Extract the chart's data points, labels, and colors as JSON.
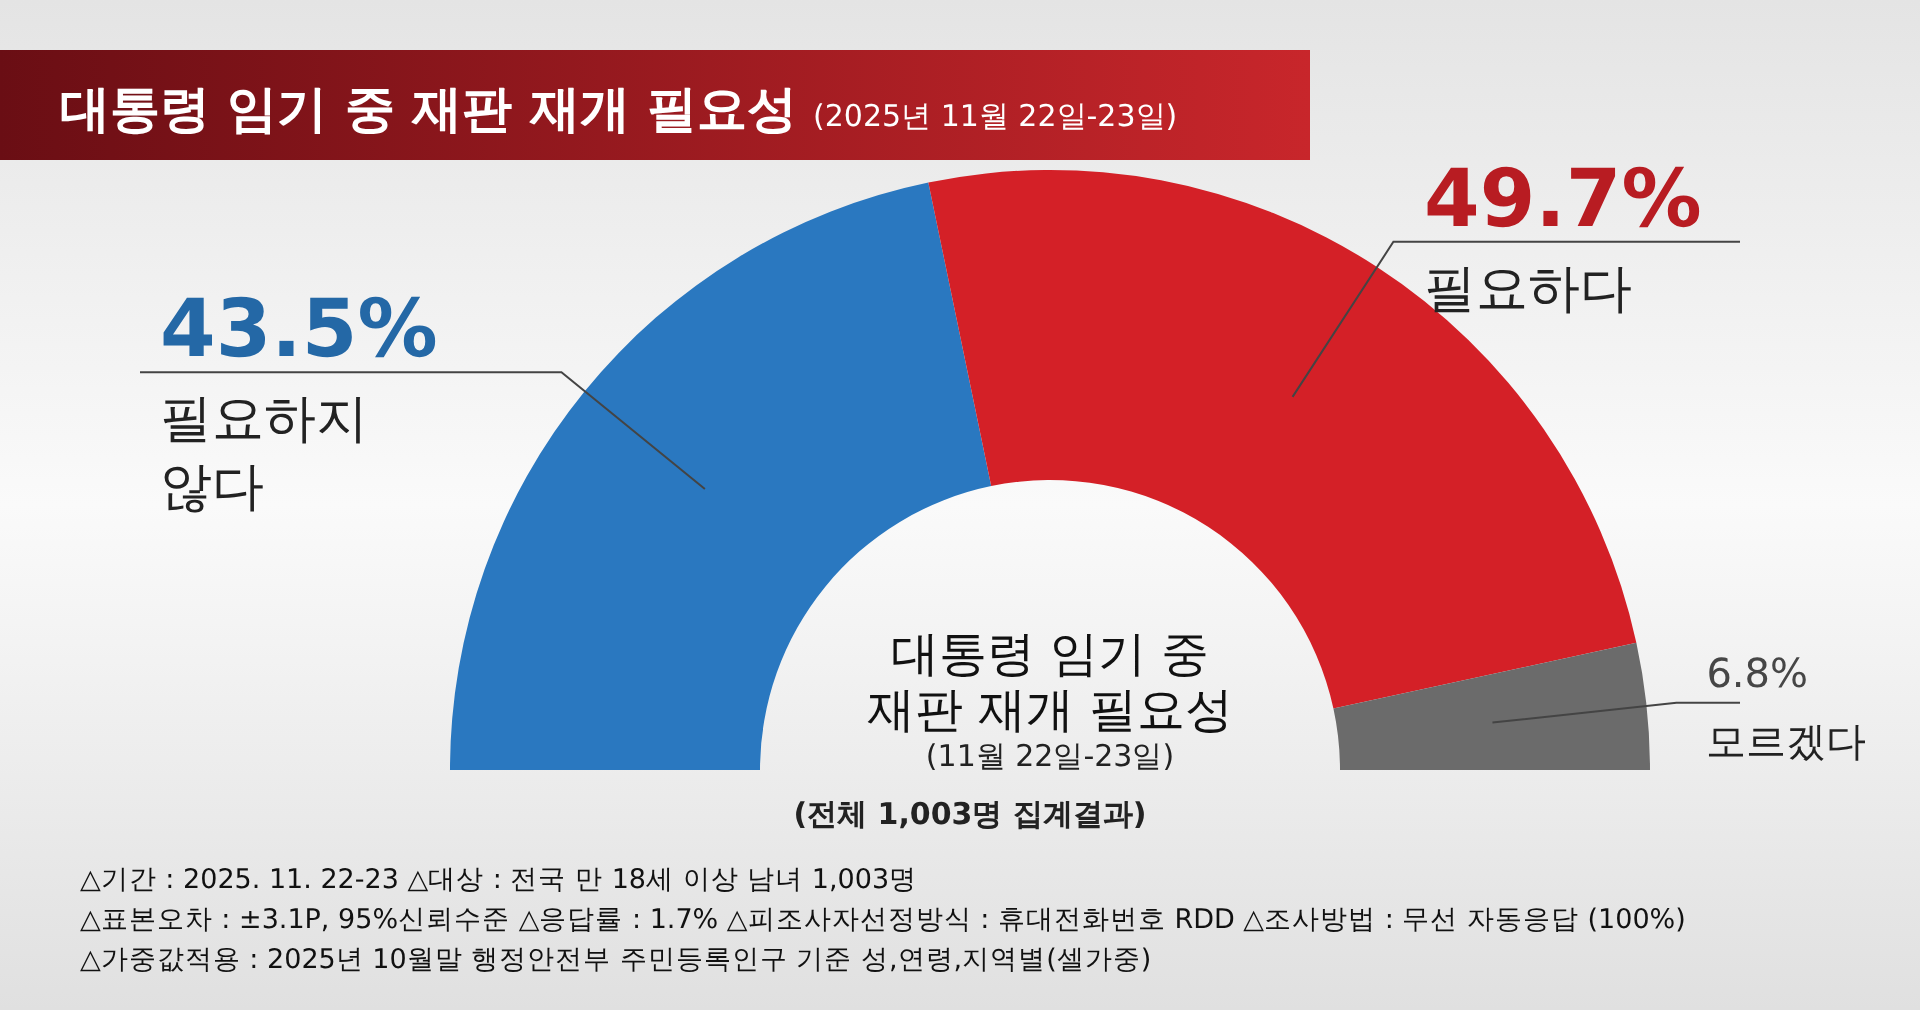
{
  "chart_data": {
    "type": "donut",
    "title": "대통령 임기 중 재판 재개 필요성",
    "subtitle": "(2025년 11월 22일-23일)",
    "categories": [
      "필요하지 않다",
      "필요하다",
      "모르겠다"
    ],
    "values": [
      43.5,
      49.7,
      6.8
    ],
    "value_labels": [
      "43.5%",
      "49.7%",
      "6.8%"
    ],
    "colors": [
      "#2a78c0",
      "#d42027",
      "#6b6b6b"
    ],
    "annotations": [
      "대통령 임기 중 재판 재개 필요성",
      "(11월 22일-23일)",
      "(전체 1,003명 집계결과)",
      "△기간 : 2025. 11. 22-23  △대상 : 전국 만 18세 이상 남녀 1,003명",
      "△표본오차 : ±3.1P, 95%신뢰수준  △응답률 : 1.7%  △피조사자선정방식 : 휴대전화번호 RDD  △조사방법 : 무선 자동응답 (100%)",
      "△가중값적용 : 2025년 10월말 행정안전부 주민등록인구 기준 성,연령,지역별(셀가중)"
    ]
  }
}
